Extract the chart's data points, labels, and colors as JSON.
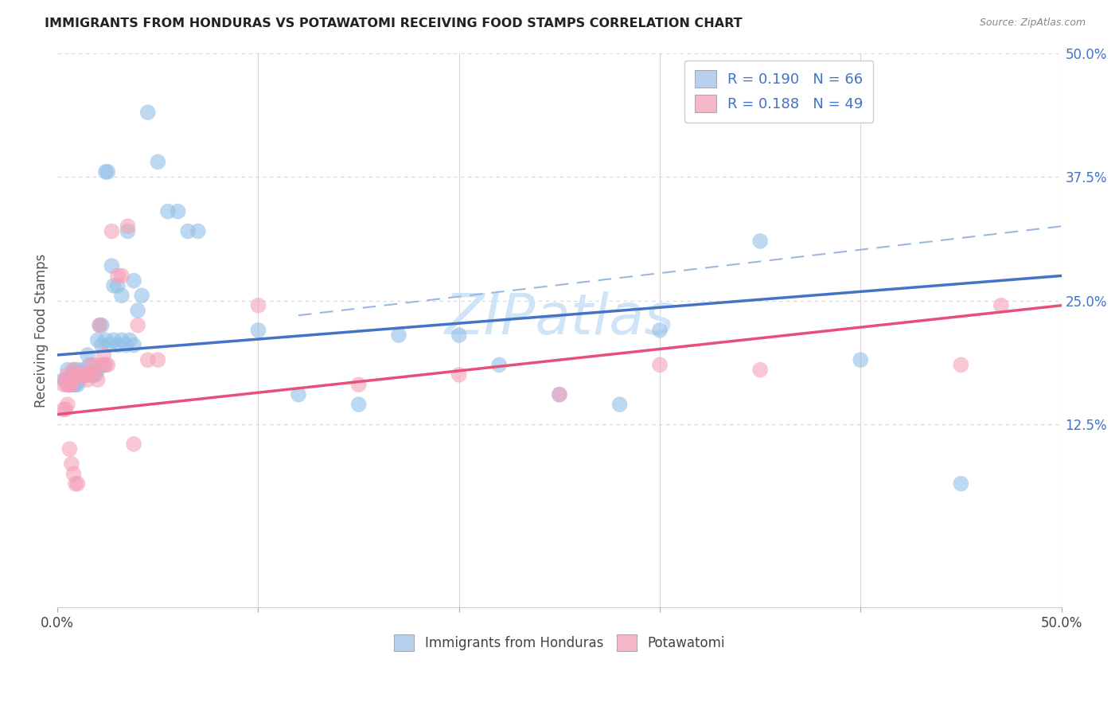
{
  "title": "IMMIGRANTS FROM HONDURAS VS POTAWATOMI RECEIVING FOOD STAMPS CORRELATION CHART",
  "source": "Source: ZipAtlas.com",
  "ylabel": "Receiving Food Stamps",
  "xlim": [
    0.0,
    0.5
  ],
  "ylim": [
    -0.06,
    0.5
  ],
  "legend_entries": [
    {
      "label": "R = 0.190   N = 66",
      "facecolor": "#b8d0f0"
    },
    {
      "label": "R = 0.188   N = 49",
      "facecolor": "#f5b8c8"
    }
  ],
  "blue_scatter_x": [
    0.003,
    0.004,
    0.005,
    0.005,
    0.006,
    0.006,
    0.007,
    0.007,
    0.008,
    0.008,
    0.009,
    0.009,
    0.01,
    0.01,
    0.011,
    0.012,
    0.013,
    0.014,
    0.015,
    0.015,
    0.016,
    0.017,
    0.018,
    0.019,
    0.02,
    0.021,
    0.022,
    0.023,
    0.024,
    0.025,
    0.027,
    0.028,
    0.03,
    0.032,
    0.035,
    0.038,
    0.04,
    0.042,
    0.045,
    0.05,
    0.055,
    0.06,
    0.065,
    0.07,
    0.1,
    0.12,
    0.15,
    0.17,
    0.2,
    0.22,
    0.25,
    0.28,
    0.3,
    0.35,
    0.4,
    0.45,
    0.02,
    0.022,
    0.024,
    0.026,
    0.028,
    0.03,
    0.032,
    0.034,
    0.036,
    0.038
  ],
  "blue_scatter_y": [
    0.17,
    0.17,
    0.18,
    0.165,
    0.165,
    0.165,
    0.175,
    0.165,
    0.18,
    0.165,
    0.175,
    0.165,
    0.18,
    0.165,
    0.17,
    0.175,
    0.18,
    0.175,
    0.195,
    0.175,
    0.185,
    0.175,
    0.175,
    0.175,
    0.18,
    0.225,
    0.225,
    0.185,
    0.38,
    0.38,
    0.285,
    0.265,
    0.265,
    0.255,
    0.32,
    0.27,
    0.24,
    0.255,
    0.44,
    0.39,
    0.34,
    0.34,
    0.32,
    0.32,
    0.22,
    0.155,
    0.145,
    0.215,
    0.215,
    0.185,
    0.155,
    0.145,
    0.22,
    0.31,
    0.19,
    0.065,
    0.21,
    0.205,
    0.21,
    0.205,
    0.21,
    0.205,
    0.21,
    0.205,
    0.21,
    0.205
  ],
  "pink_scatter_x": [
    0.003,
    0.004,
    0.005,
    0.005,
    0.006,
    0.006,
    0.007,
    0.008,
    0.009,
    0.01,
    0.011,
    0.012,
    0.013,
    0.014,
    0.015,
    0.016,
    0.017,
    0.018,
    0.019,
    0.02,
    0.021,
    0.022,
    0.023,
    0.024,
    0.025,
    0.027,
    0.03,
    0.032,
    0.035,
    0.038,
    0.04,
    0.045,
    0.05,
    0.003,
    0.004,
    0.005,
    0.006,
    0.007,
    0.008,
    0.009,
    0.01,
    0.1,
    0.15,
    0.2,
    0.25,
    0.3,
    0.35,
    0.45,
    0.47
  ],
  "pink_scatter_y": [
    0.165,
    0.17,
    0.175,
    0.165,
    0.165,
    0.165,
    0.165,
    0.18,
    0.175,
    0.175,
    0.175,
    0.175,
    0.175,
    0.175,
    0.17,
    0.175,
    0.185,
    0.175,
    0.185,
    0.17,
    0.225,
    0.185,
    0.195,
    0.185,
    0.185,
    0.32,
    0.275,
    0.275,
    0.325,
    0.105,
    0.225,
    0.19,
    0.19,
    0.14,
    0.14,
    0.145,
    0.1,
    0.085,
    0.075,
    0.065,
    0.065,
    0.245,
    0.165,
    0.175,
    0.155,
    0.185,
    0.18,
    0.185,
    0.245
  ],
  "blue_line_x": [
    0.0,
    0.5
  ],
  "blue_line_y": [
    0.195,
    0.275
  ],
  "pink_line_x": [
    0.0,
    0.5
  ],
  "pink_line_y": [
    0.135,
    0.245
  ],
  "dashed_line_x": [
    0.12,
    0.5
  ],
  "dashed_line_y": [
    0.235,
    0.325
  ],
  "blue_dot_color": "#92c0e8",
  "pink_dot_color": "#f5a0b8",
  "blue_line_color": "#4472c4",
  "pink_line_color": "#e8507a",
  "dashed_line_color": "#9ab8e0",
  "watermark_color": "#d0e4f7",
  "background_color": "#ffffff",
  "grid_color": "#d8d8d8"
}
